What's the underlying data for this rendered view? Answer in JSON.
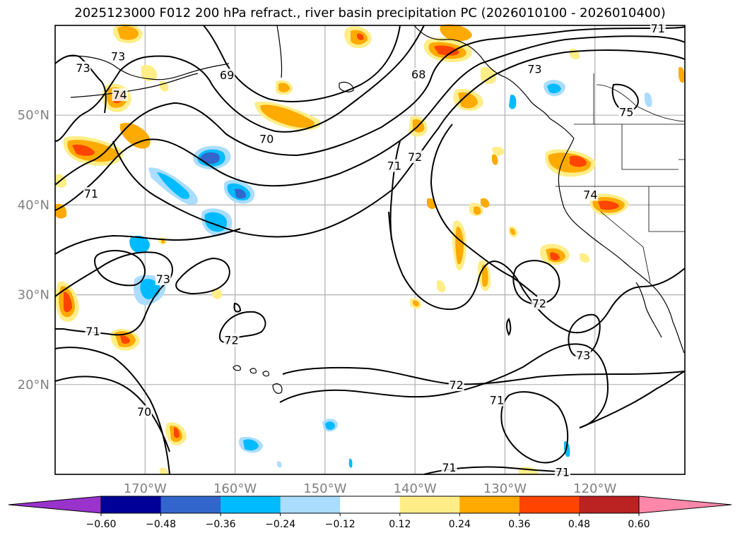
{
  "title": "2025123000 F012 200 hPa refract., river basin precipitation PC (2026010100 - 2026010400)",
  "map": {
    "lon_range": [
      -180,
      -110
    ],
    "lat_range": [
      10,
      60
    ],
    "lat_ticks": [
      {
        "value": 20,
        "label": "20°N"
      },
      {
        "value": 30,
        "label": "30°N"
      },
      {
        "value": 40,
        "label": "40°N"
      },
      {
        "value": 50,
        "label": "50°N"
      }
    ],
    "lon_ticks": [
      {
        "value": -170,
        "label": "170°W"
      },
      {
        "value": -160,
        "label": "160°W"
      },
      {
        "value": -150,
        "label": "150°W"
      },
      {
        "value": -140,
        "label": "140°W"
      },
      {
        "value": -130,
        "label": "130°W"
      },
      {
        "value": -120,
        "label": "120°W"
      }
    ],
    "contour_labels": [
      {
        "text": "73",
        "lon": -176.9,
        "lat": 55.2
      },
      {
        "text": "73",
        "lon": -173.0,
        "lat": 56.5
      },
      {
        "text": "74",
        "lon": -172.8,
        "lat": 52.2
      },
      {
        "text": "69",
        "lon": -160.9,
        "lat": 54.4
      },
      {
        "text": "68",
        "lon": -139.6,
        "lat": 54.5
      },
      {
        "text": "73",
        "lon": -126.7,
        "lat": 55.1
      },
      {
        "text": "71",
        "lon": -113.0,
        "lat": 59.6
      },
      {
        "text": "75",
        "lon": -116.5,
        "lat": 50.3
      },
      {
        "text": "70",
        "lon": -156.5,
        "lat": 47.3
      },
      {
        "text": "71",
        "lon": -142.3,
        "lat": 44.3
      },
      {
        "text": "72",
        "lon": -140.0,
        "lat": 45.3
      },
      {
        "text": "71",
        "lon": -176.0,
        "lat": 41.2
      },
      {
        "text": "74",
        "lon": -120.5,
        "lat": 41.1
      },
      {
        "text": "73",
        "lon": -168.0,
        "lat": 31.7
      },
      {
        "text": "72",
        "lon": -126.2,
        "lat": 29.0
      },
      {
        "text": "71",
        "lon": -175.8,
        "lat": 25.9
      },
      {
        "text": "72",
        "lon": -160.4,
        "lat": 24.9
      },
      {
        "text": "73",
        "lon": -121.3,
        "lat": 23.2
      },
      {
        "text": "72",
        "lon": -135.4,
        "lat": 19.9
      },
      {
        "text": "71",
        "lon": -130.9,
        "lat": 18.2
      },
      {
        "text": "70",
        "lon": -170.1,
        "lat": 16.9
      },
      {
        "text": "71",
        "lon": -136.2,
        "lat": 10.7
      },
      {
        "text": "71",
        "lon": -123.6,
        "lat": 10.2
      }
    ]
  },
  "colorbar": {
    "levels": [
      -0.6,
      -0.48,
      -0.36,
      -0.24,
      -0.12,
      0.12,
      0.24,
      0.36,
      0.48,
      0.6
    ],
    "tick_labels": [
      "−0.60",
      "−0.48",
      "−0.36",
      "−0.24",
      "−0.12",
      "0.12",
      "0.24",
      "0.36",
      "0.48",
      "0.60"
    ],
    "under_color": "#9933cc",
    "over_color": "#ff88aa",
    "colors": [
      "#000099",
      "#3366cc",
      "#00bbff",
      "#aaddff",
      "#ffffff",
      "#ffee88",
      "#ffaa00",
      "#ff4400",
      "#bb2222"
    ]
  }
}
